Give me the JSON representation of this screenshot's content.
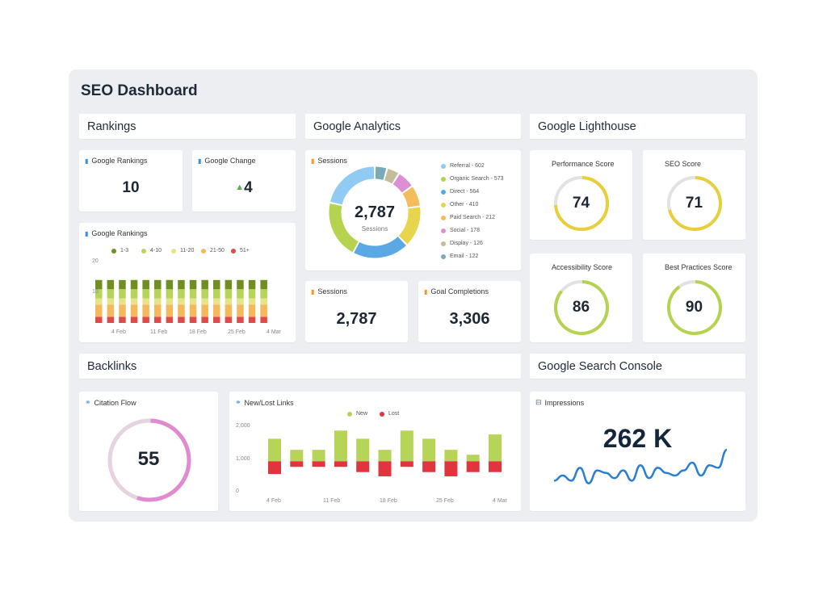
{
  "title": "SEO Dashboard",
  "sections": {
    "rankings": "Rankings",
    "analytics": "Google Analytics",
    "lighthouse": "Google Lighthouse",
    "backlinks": "Backlinks",
    "gsc": "Google Search Console"
  },
  "rankings": {
    "google_rankings": {
      "label": "Google Rankings",
      "value": "10"
    },
    "google_change": {
      "label": "Google Change",
      "value": "4",
      "direction": "up"
    }
  },
  "analytics": {
    "sessions_big": {
      "label": "Sessions",
      "value": "2,787"
    },
    "goal_completions": {
      "label": "Goal Completions",
      "value": "3,306"
    }
  },
  "lighthouse": [
    {
      "label": "Performance Score",
      "value": 74,
      "color": "#e8cf3a"
    },
    {
      "label": "SEO Score",
      "value": 71,
      "color": "#e8cf3a"
    },
    {
      "label": "Accessibility Score",
      "value": 86,
      "color": "#b5d34e"
    },
    {
      "label": "Best Practices Score",
      "value": 90,
      "color": "#b5d34e"
    }
  ],
  "citation_flow": {
    "label": "Citation Flow",
    "value": 55,
    "color": "#e08bd0"
  },
  "impressions": {
    "label": "Impressions",
    "value": "262 K",
    "trend": [
      3,
      5,
      3,
      8,
      2,
      7,
      6,
      4,
      7,
      3,
      9,
      4,
      8,
      6,
      5,
      7,
      10,
      5,
      9,
      8,
      15
    ]
  },
  "chart_data": [
    {
      "type": "pie",
      "title": "Sessions",
      "center_value": "2,787",
      "center_label": "Sessions",
      "slices": [
        {
          "name": "Referral",
          "value": 602,
          "color": "#8fcbf2",
          "label": "Referral - 602"
        },
        {
          "name": "Organic Search",
          "value": 573,
          "color": "#b5d34e",
          "label": "Organic Search - 573"
        },
        {
          "name": "Direct",
          "value": 564,
          "color": "#5aa9e4",
          "label": "Direct - 564"
        },
        {
          "name": "Other",
          "value": 410,
          "color": "#e8d54e",
          "label": "Other - 410"
        },
        {
          "name": "Paid Search",
          "value": 212,
          "color": "#f2bd5a",
          "label": "Paid Search - 212"
        },
        {
          "name": "Social",
          "value": 178,
          "color": "#dc8fd2",
          "label": "Social - 178"
        },
        {
          "name": "Display",
          "value": 126,
          "color": "#c4bd9a",
          "label": "Display - 126"
        },
        {
          "name": "Email",
          "value": 122,
          "color": "#7aaab8",
          "label": "Email - 122"
        }
      ]
    },
    {
      "type": "bar",
      "stacked": true,
      "title": "Google Rankings",
      "ylim": [
        0,
        20
      ],
      "yticks": [
        "20",
        "10"
      ],
      "xticks": [
        "4 Feb",
        "11 Feb",
        "18 Feb",
        "25 Feb",
        "4 Mar"
      ],
      "series": [
        {
          "name": "51+",
          "color": "#e04a4a",
          "values": [
            2,
            2,
            2,
            2,
            2,
            2,
            2,
            2,
            2,
            2,
            2,
            2,
            2,
            2,
            2
          ]
        },
        {
          "name": "21-50",
          "color": "#f3b95a",
          "values": [
            4,
            4,
            4,
            4,
            4,
            4,
            4,
            4,
            4,
            4,
            4,
            4,
            4,
            4,
            4
          ]
        },
        {
          "name": "11-20",
          "color": "#e6e38a",
          "values": [
            2,
            2,
            2,
            2,
            2,
            2,
            2,
            2,
            2,
            2,
            2,
            2,
            2,
            2,
            2
          ]
        },
        {
          "name": "4-10",
          "color": "#b6d457",
          "values": [
            3,
            3,
            3,
            3,
            3,
            3,
            3,
            3,
            3,
            3,
            3,
            3,
            3,
            3,
            3
          ]
        },
        {
          "name": "1-3",
          "color": "#6f8f22",
          "values": [
            3,
            3,
            3,
            3,
            3,
            3,
            3,
            3,
            3,
            3,
            3,
            3,
            3,
            3,
            3
          ]
        }
      ],
      "legend": [
        "1-3",
        "4-10",
        "11-20",
        "21-50",
        "51+"
      ]
    },
    {
      "type": "bar",
      "title": "New/Lost Links",
      "ylim": [
        0,
        2000
      ],
      "yticks": [
        "2,000",
        "1,000",
        "0"
      ],
      "xticks": [
        "4 Feb",
        "11 Feb",
        "18 Feb",
        "25 Feb",
        "4 Mar"
      ],
      "series": [
        {
          "name": "New",
          "color": "#b6d457",
          "values": [
            1620,
            1280,
            1280,
            1870,
            1620,
            1280,
            1870,
            1620,
            1280,
            1130,
            1750
          ]
        },
        {
          "name": "Lost",
          "color": "#e0343f",
          "values": [
            540,
            760,
            760,
            760,
            600,
            470,
            760,
            600,
            470,
            600,
            600
          ]
        }
      ]
    }
  ]
}
